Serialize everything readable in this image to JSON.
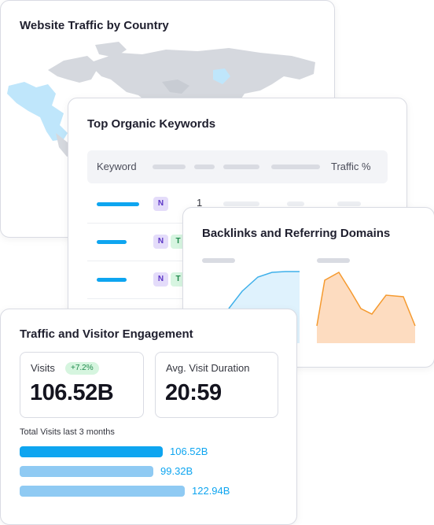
{
  "colors": {
    "accent": "#0ea5f0",
    "accent_light": "#8fcaf3",
    "map_land": "#d5d8de",
    "map_highlight": "#bfe6fb",
    "chart_blue_fill": "#dff2fd",
    "chart_blue_line": "#3fb0ea",
    "chart_orange_fill": "#fddcc0",
    "chart_orange_line": "#f59a2f"
  },
  "map_card": {
    "title": "Website Traffic by Country"
  },
  "keywords_card": {
    "title": "Top Organic Keywords",
    "header": {
      "keyword_label": "Keyword",
      "traffic_label": "Traffic %"
    },
    "rows": [
      {
        "intents": [
          "N"
        ],
        "position": "1"
      },
      {
        "intents": [
          "N",
          "T"
        ],
        "position": ""
      },
      {
        "intents": [
          "N",
          "T"
        ],
        "position": ""
      }
    ]
  },
  "backlinks_card": {
    "title": "Backlinks and Referring Domains"
  },
  "engagement_card": {
    "title": "Traffic and Visitor Engagement",
    "visits": {
      "label": "Visits",
      "delta": "+7.2%",
      "value": "106.52B"
    },
    "duration": {
      "label": "Avg. Visit Duration",
      "value": "20:59"
    },
    "caption": "Total Visits last 3 months",
    "bars": [
      {
        "value": "106.52B",
        "amount": 106.52,
        "highlight": true
      },
      {
        "value": "99.32B",
        "amount": 99.32,
        "highlight": false
      },
      {
        "value": "122.94B",
        "amount": 122.94,
        "highlight": false
      }
    ]
  }
}
